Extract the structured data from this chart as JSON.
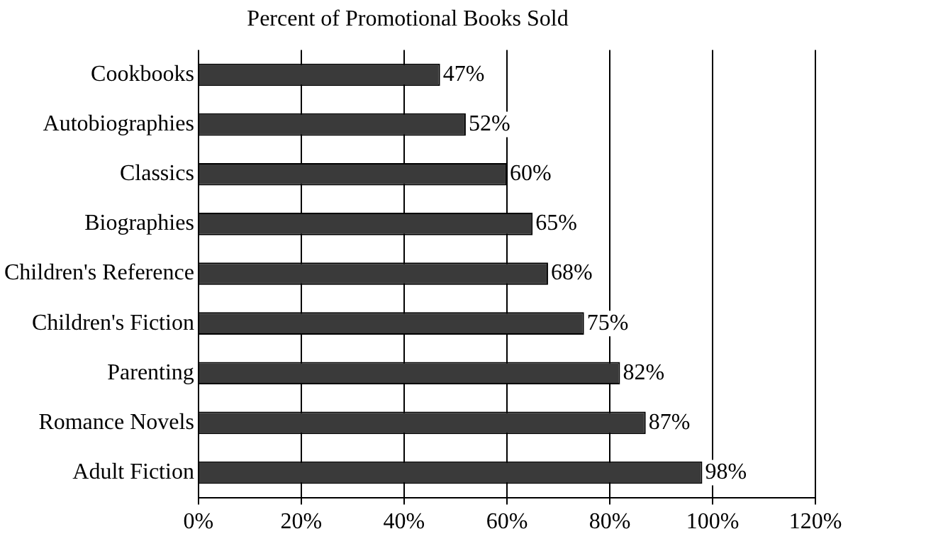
{
  "chart_data": {
    "type": "bar",
    "orientation": "horizontal",
    "title": "Percent of Promotional Books Sold",
    "categories": [
      "Cookbooks",
      "Autobiographies",
      "Classics",
      "Biographies",
      "Children's Reference",
      "Children's Fiction",
      "Parenting",
      "Romance Novels",
      "Adult Fiction"
    ],
    "values": [
      47,
      52,
      60,
      65,
      68,
      75,
      82,
      87,
      98
    ],
    "value_labels": [
      "47%",
      "52%",
      "60%",
      "65%",
      "68%",
      "75%",
      "82%",
      "87%",
      "98%"
    ],
    "color": "#3a3a3a",
    "xlim": [
      0,
      120
    ],
    "xticks": [
      {
        "value": 0,
        "label": "0%"
      },
      {
        "value": 20,
        "label": "20%"
      },
      {
        "value": 40,
        "label": "40%"
      },
      {
        "value": 60,
        "label": "60%"
      },
      {
        "value": 80,
        "label": "80%"
      },
      {
        "value": 100,
        "label": "100%"
      },
      {
        "value": 120,
        "label": "120%"
      }
    ],
    "grid": "x",
    "legend": false
  }
}
